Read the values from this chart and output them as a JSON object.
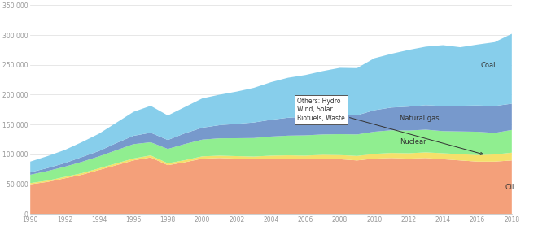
{
  "years": [
    1990,
    1991,
    1992,
    1993,
    1994,
    1995,
    1996,
    1997,
    1998,
    1999,
    2000,
    2001,
    2002,
    2003,
    2004,
    2005,
    2006,
    2007,
    2008,
    2009,
    2010,
    2011,
    2012,
    2013,
    2014,
    2015,
    2016,
    2017,
    2018
  ],
  "oil": [
    50000,
    54000,
    60000,
    66000,
    74000,
    82000,
    90000,
    95000,
    82000,
    87000,
    93000,
    94000,
    93000,
    92000,
    93000,
    93000,
    92000,
    93000,
    92000,
    90000,
    93000,
    94000,
    93000,
    94000,
    92000,
    90000,
    88000,
    88000,
    90000
  ],
  "others": [
    2000,
    2200,
    2400,
    2600,
    2800,
    3000,
    3200,
    3400,
    3200,
    3500,
    3800,
    4000,
    4200,
    4500,
    5000,
    5500,
    6000,
    6500,
    7000,
    7500,
    8000,
    8500,
    9000,
    9500,
    10000,
    10500,
    11000,
    12000,
    13000
  ],
  "nuclear": [
    14000,
    16000,
    17000,
    19000,
    20000,
    22000,
    24000,
    22000,
    24000,
    27000,
    28000,
    29000,
    30000,
    31000,
    32000,
    33000,
    34000,
    34000,
    35000,
    36000,
    37000,
    38000,
    38000,
    38000,
    37000,
    38000,
    39000,
    36000,
    38000
  ],
  "natural_gas": [
    4000,
    5000,
    6000,
    8000,
    9000,
    12000,
    14000,
    16000,
    15000,
    18000,
    20000,
    22000,
    24000,
    26000,
    28000,
    30000,
    31000,
    32000,
    33000,
    32000,
    36000,
    38000,
    40000,
    41000,
    42000,
    43000,
    44000,
    45000,
    44000
  ],
  "coal": [
    18000,
    20000,
    22000,
    25000,
    29000,
    34000,
    40000,
    45000,
    41000,
    44000,
    49000,
    51000,
    54000,
    58000,
    63000,
    67000,
    70000,
    74000,
    78000,
    79000,
    87000,
    90000,
    95000,
    98000,
    102000,
    98000,
    102000,
    107000,
    117000
  ],
  "colors": {
    "oil": "#F4A07A",
    "others": "#F5E06A",
    "nuclear": "#90EE90",
    "natural_gas": "#7799CC",
    "coal": "#87CEEB"
  },
  "ylim": [
    0,
    350000
  ],
  "yticks": [
    0,
    50000,
    100000,
    150000,
    200000,
    250000,
    300000,
    350000
  ],
  "ytick_labels": [
    "0",
    "50 000",
    "100 000",
    "150 000",
    "200 000",
    "250 000",
    "300 000",
    "350 000"
  ],
  "background_color": "#FFFFFF",
  "grid_color": "#DDDDDD",
  "label_coal": "Coal",
  "label_natural_gas": "Natural gas",
  "label_nuclear": "Nuclear",
  "label_oil": "Oil",
  "label_others_box": "Others: Hydro\nWind, Solar\nBiofuels, Waste"
}
